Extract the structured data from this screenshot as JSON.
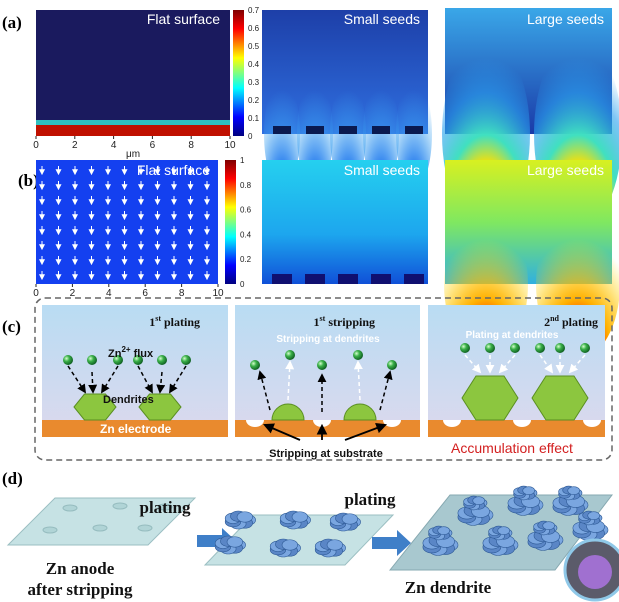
{
  "panel_a": {
    "label": "(a)",
    "maps": [
      "Flat surface",
      "Small seeds",
      "Large seeds"
    ],
    "colorbar_ticks": [
      0,
      0.1,
      0.2,
      0.3,
      0.4,
      0.5,
      0.6,
      0.7
    ],
    "x_ticks": [
      0,
      2,
      4,
      6,
      8,
      10
    ],
    "x_unit": "μm"
  },
  "panel_b": {
    "label": "(b)",
    "maps": [
      "Flat surface",
      "Small seeds",
      "Large seeds"
    ],
    "colorbar_ticks": [
      0,
      0.2,
      0.4,
      0.6,
      0.8,
      1
    ],
    "x_ticks": [
      0,
      2,
      4,
      6,
      8,
      10
    ]
  },
  "panel_c": {
    "label": "(c)",
    "steps": [
      {
        "ordinal": "1",
        "suffix": "st",
        "title": "plating"
      },
      {
        "ordinal": "1",
        "suffix": "st",
        "title": "stripping"
      },
      {
        "ordinal": "2",
        "suffix": "nd",
        "title": "plating"
      }
    ],
    "flux": {
      "ion": "Zn",
      "charge": "2+",
      "word": "flux"
    },
    "dendrites": "Dendrites",
    "electrode": "Zn electrode",
    "stripping_dendrites": "Stripping at dendrites",
    "stripping_substrate": "Stripping at substrate",
    "plating_dendrites": "Plating at dendrites",
    "accumulation": "Accumulation effect"
  },
  "panel_d": {
    "label": "(d)",
    "arrows": [
      "plating",
      "plating"
    ],
    "caption_anode": [
      "Zn anode",
      "after stripping"
    ],
    "caption_dendrite": "Zn dendrite"
  }
}
